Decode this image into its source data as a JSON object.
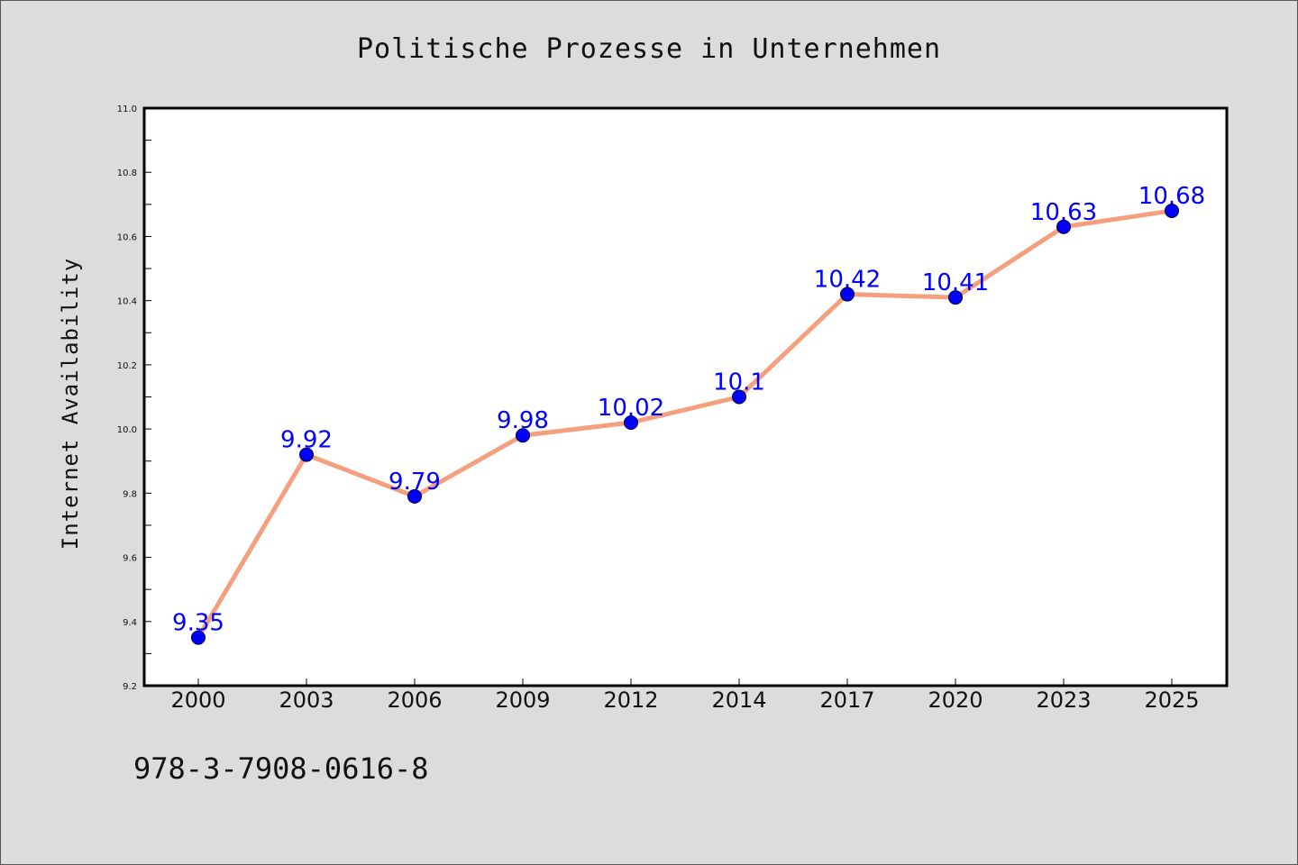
{
  "footer_text": "978-3-7908-0616-8",
  "colors": {
    "line": "#f4a07e",
    "marker": "#0000ff",
    "data_label": "#0000ff",
    "background": "#dcdcdc",
    "plot_background": "#ffffff"
  },
  "chart_data": {
    "type": "line",
    "title": "Politische Prozesse in Unternehmen",
    "xlabel": "",
    "ylabel": "Internet Availability",
    "categories": [
      "2000",
      "2003",
      "2006",
      "2009",
      "2012",
      "2014",
      "2017",
      "2020",
      "2023",
      "2025"
    ],
    "series": [
      {
        "values": [
          9.35,
          9.92,
          9.79,
          9.98,
          10.02,
          10.1,
          10.42,
          10.41,
          10.63,
          10.68
        ],
        "data_labels": [
          "9.35",
          "9.92",
          "9.79",
          "9.98",
          "10.02",
          "10.1",
          "10.42",
          "10.41",
          "10.63",
          "10.68"
        ]
      }
    ],
    "ylim": [
      9.2,
      11.0
    ],
    "yticks": [
      "9.2",
      "9.4",
      "9.6",
      "9.8",
      "10.0",
      "10.2",
      "10.4",
      "10.6",
      "10.8",
      "11.0"
    ],
    "grid": false,
    "legend": "none"
  }
}
